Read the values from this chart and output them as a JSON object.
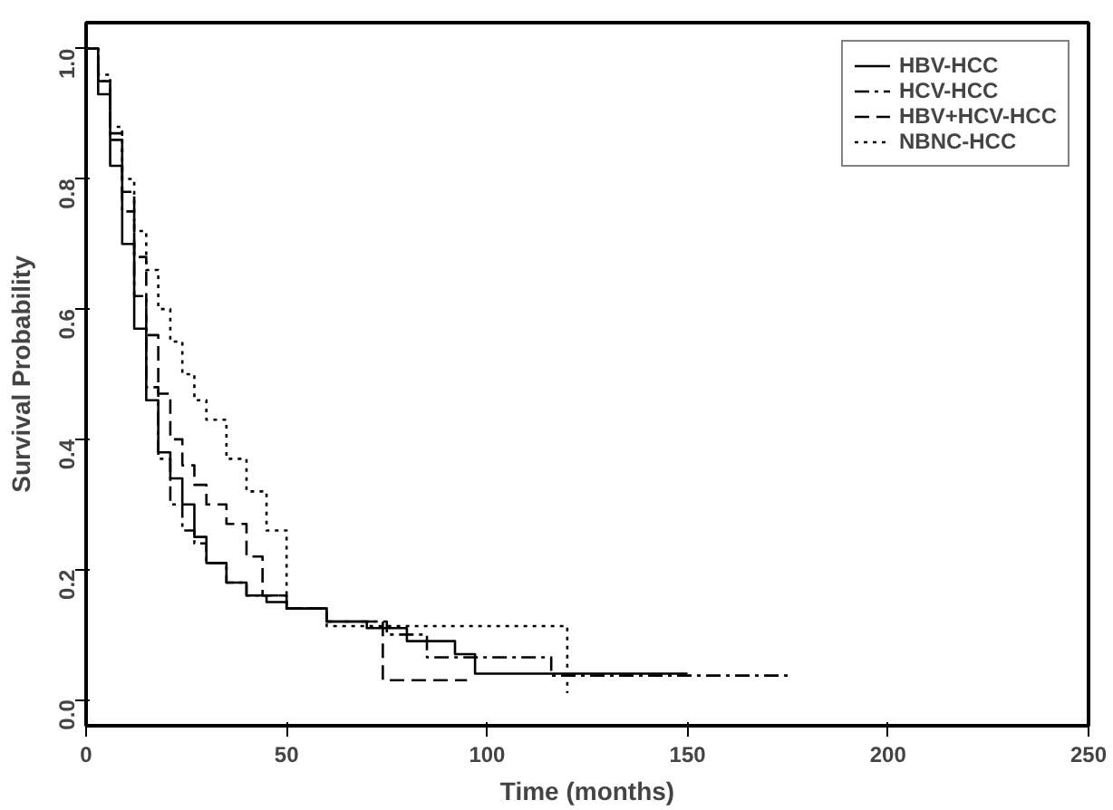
{
  "chart_data": {
    "type": "step",
    "xlabel": "Time (months)",
    "ylabel": "Survival Probability",
    "xlim": [
      0,
      250
    ],
    "ylim": [
      -0.04,
      1.04
    ],
    "xticks": [
      0,
      50,
      100,
      150,
      200,
      250
    ],
    "yticks": [
      {
        "value": 0,
        "label": "0.0"
      },
      0.2,
      0.4,
      0.6,
      0.8,
      {
        "value": 1,
        "label": "1.0"
      }
    ],
    "grid": false,
    "legend": "top right",
    "marker": "none",
    "series": [
      {
        "name": "HBV-HCC",
        "color": "#000000",
        "line_style": "solid",
        "x": [
          0,
          3,
          6,
          9,
          12,
          15,
          18,
          21,
          24,
          27,
          30,
          35,
          40,
          45,
          50,
          60,
          70,
          80,
          92,
          97,
          150
        ],
        "values": [
          1,
          0.93,
          0.82,
          0.7,
          0.57,
          0.46,
          0.38,
          0.34,
          0.3,
          0.25,
          0.21,
          0.18,
          0.16,
          0.15,
          0.14,
          0.12,
          0.11,
          0.09,
          0.07,
          0.04,
          0.04
        ]
      },
      {
        "name": "HCV-HCC",
        "color": "#000000",
        "line_style": "dashdot",
        "x": [
          0,
          3,
          6,
          9,
          12,
          15,
          18,
          21,
          24,
          27,
          30,
          35,
          40,
          50,
          60,
          75,
          85,
          116,
          175
        ],
        "values": [
          1,
          0.95,
          0.86,
          0.75,
          0.62,
          0.48,
          0.37,
          0.3,
          0.26,
          0.24,
          0.21,
          0.18,
          0.16,
          0.14,
          0.12,
          0.1,
          0.065,
          0.037,
          0.037
        ]
      },
      {
        "name": "HBV+HCV-HCC",
        "color": "#000000",
        "line_style": "dashed",
        "x": [
          0,
          3,
          6,
          9,
          12,
          15,
          18,
          21,
          24,
          27,
          30,
          35,
          40,
          44,
          50,
          60,
          74,
          95
        ],
        "values": [
          1,
          0.95,
          0.87,
          0.78,
          0.68,
          0.56,
          0.47,
          0.4,
          0.36,
          0.33,
          0.3,
          0.27,
          0.22,
          0.16,
          0.14,
          0.12,
          0.03,
          0.03
        ]
      },
      {
        "name": "NBNC-HCC",
        "color": "#000000",
        "line_style": "dotted",
        "x": [
          0,
          3,
          6,
          9,
          12,
          15,
          18,
          21,
          24,
          27,
          30,
          35,
          40,
          45,
          50,
          60,
          120,
          120
        ],
        "values": [
          1,
          0.96,
          0.88,
          0.8,
          0.72,
          0.66,
          0.6,
          0.55,
          0.5,
          0.46,
          0.43,
          0.37,
          0.32,
          0.26,
          0.14,
          0.113,
          0.113,
          0.01
        ]
      }
    ]
  }
}
